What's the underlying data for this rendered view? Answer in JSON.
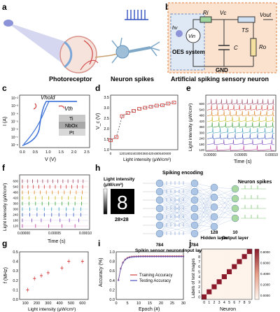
{
  "panels": {
    "a": {
      "letter": "a",
      "photoreceptor": "Photoreceptor",
      "neuron_spikes": "Neuron spikes"
    },
    "b": {
      "letter": "b",
      "hv": "hv",
      "ri": "Ri",
      "vc": "Vc",
      "ts": "TS",
      "vout": "Vout",
      "vin": "Vin",
      "oes": "OES system",
      "c": "C",
      "ro": "Ro",
      "gnd": "GND",
      "caption": "Artificial spiking sensory neuron"
    },
    "c": {
      "letter": "c",
      "xlabel": "V (V)",
      "ylabel": "I (A)",
      "vhold": "Vhold",
      "vth": "Vth",
      "layers": [
        "Ti",
        "NbOx",
        "Pt"
      ]
    },
    "d": {
      "letter": "d"
    },
    "e": {
      "letter": "e"
    },
    "f": {
      "letter": "f"
    },
    "g": {
      "letter": "g"
    },
    "h": {
      "letter": "h",
      "light_intensity_label": "Light intensity",
      "light_unit": "(μW/cm²)",
      "spiking_encoding": "Spiking encoding",
      "neuron_spikes": "Neuron spikes",
      "image_size": "28×28",
      "digit": "8",
      "cols": [
        {
          "n": "784",
          "label": "Spikin sensor neurons"
        },
        {
          "n": "784",
          "label": "Input layer"
        },
        {
          "n": "128",
          "label": "Hidden layer"
        },
        {
          "n": "10",
          "label": "Output layer"
        }
      ]
    },
    "i": {
      "letter": "i"
    },
    "j": {
      "letter": "j"
    }
  },
  "chart_data": [
    {
      "id": "c",
      "type": "line",
      "xlabel": "V (V)",
      "ylabel": "I (A)",
      "xlim": [
        0,
        2.5
      ],
      "x_ticks": [
        "0.0",
        "0.5",
        "1.0",
        "1.5",
        "2.0",
        "2.5"
      ],
      "y_ticks": [
        "10⁻²",
        "10⁻³",
        "10⁻⁴",
        "10⁻⁵",
        "10⁻⁶",
        "10⁻⁷",
        "10⁻⁸"
      ]
    },
    {
      "id": "d",
      "type": "scatter",
      "xlabel": "Light intensity (μW/cm²)",
      "ylabel": "V_c (V)",
      "xlim": [
        0,
        700
      ],
      "ylim": [
        1.0,
        3.6
      ],
      "x_ticks": [
        "0",
        "120",
        "180",
        "240",
        "300",
        "360",
        "420",
        "480",
        "540",
        "600"
      ],
      "x": [
        0,
        60,
        120,
        180,
        240,
        300,
        360,
        420,
        480,
        540,
        600,
        660
      ],
      "values": [
        1.45,
        1.6,
        2.6,
        2.75,
        2.85,
        2.95,
        3.0,
        3.05,
        3.1,
        3.12,
        3.2,
        3.25
      ],
      "y_ticks": [
        "1.0",
        "1.5",
        "2.0",
        "2.5",
        "3.0",
        "3.5"
      ]
    },
    {
      "id": "e",
      "type": "line",
      "xlabel": "Time (s)",
      "ylabel": "Light intensity (μW/cm²)",
      "x_ticks": [
        "0.00000",
        "0.00005",
        "0.00010"
      ],
      "series": [
        {
          "name": "600",
          "color": "#a05070",
          "spikes": 13
        },
        {
          "name": "540",
          "color": "#d04040",
          "spikes": 12
        },
        {
          "name": "480",
          "color": "#e08a30",
          "spikes": 11
        },
        {
          "name": "420",
          "color": "#c8b820",
          "spikes": 10
        },
        {
          "name": "360",
          "color": "#40a040",
          "spikes": 10
        },
        {
          "name": "300",
          "color": "#40a0c0",
          "spikes": 9
        },
        {
          "name": "240",
          "color": "#4060c0",
          "spikes": 9
        },
        {
          "name": "180",
          "color": "#8050c0",
          "spikes": 7
        },
        {
          "name": "120",
          "color": "#c040a0",
          "spikes": 5
        }
      ]
    },
    {
      "id": "f",
      "type": "scatter",
      "xlabel": "Time (s)",
      "ylabel": "Light intensity (μW/cm²)",
      "x_ticks": [
        "0.00000",
        "0.00005",
        "0.00010"
      ],
      "series": [
        {
          "name": "600",
          "color": "#a05070",
          "spikes": 13
        },
        {
          "name": "540",
          "color": "#d04040",
          "spikes": 12
        },
        {
          "name": "480",
          "color": "#e08a30",
          "spikes": 11
        },
        {
          "name": "420",
          "color": "#c8b820",
          "spikes": 10
        },
        {
          "name": "360",
          "color": "#40a040",
          "spikes": 10
        },
        {
          "name": "300",
          "color": "#40a0c0",
          "spikes": 9
        },
        {
          "name": "240",
          "color": "#4060c0",
          "spikes": 9
        },
        {
          "name": "180",
          "color": "#8050c0",
          "spikes": 7
        },
        {
          "name": "120",
          "color": "#c040a0",
          "spikes": 5
        }
      ]
    },
    {
      "id": "g",
      "type": "scatter",
      "xlabel": "Light intensity (μW/cm²)",
      "ylabel": "f (MHz)",
      "xlim": [
        50,
        650
      ],
      "ylim": [
        0.0,
        0.5
      ],
      "x_ticks": [
        "100",
        "200",
        "300",
        "400",
        "500",
        "600"
      ],
      "y_ticks": [
        "0.0",
        "0.1",
        "0.2",
        "0.3",
        "0.4",
        "0.5"
      ],
      "x": [
        120,
        180,
        240,
        300,
        420,
        480,
        600
      ],
      "values": [
        0.1,
        0.22,
        0.25,
        0.28,
        0.33,
        0.4,
        0.4
      ]
    },
    {
      "id": "i",
      "type": "line",
      "xlabel": "Epoch (#)",
      "ylabel": "Accuracy (%)",
      "xlim": [
        0,
        30
      ],
      "ylim": [
        0.0,
        1.0
      ],
      "x_ticks": [
        "0",
        "5",
        "10",
        "15",
        "20",
        "25",
        "30"
      ],
      "y_ticks": [
        "0.0",
        "0.2",
        "0.4",
        "0.6",
        "0.8",
        "1.0"
      ],
      "series": [
        {
          "name": "Training Accuracy",
          "color": "#d04040"
        },
        {
          "name": "Testing Accuracy",
          "color": "#5050c0"
        }
      ]
    },
    {
      "id": "j",
      "type": "heatmap",
      "xlabel": "Neuron",
      "ylabel": "Labels of test images",
      "x_ticks": [
        "0",
        "1",
        "2",
        "3",
        "4",
        "5",
        "6",
        "7",
        "8",
        "9"
      ],
      "y_ticks": [
        "0",
        "1",
        "2",
        "3",
        "4",
        "5",
        "6",
        "7",
        "8",
        "9"
      ],
      "colorbar_ticks": [
        "0.8000",
        "0.6000",
        "0.4000",
        "0.2000",
        "0.0000"
      ],
      "diagonal": 0.82
    }
  ],
  "colors": {
    "panel_b_blue": "#dfe9f5",
    "panel_b_orange": "#fbe2cf",
    "heat_high": "#8b1a2b"
  }
}
